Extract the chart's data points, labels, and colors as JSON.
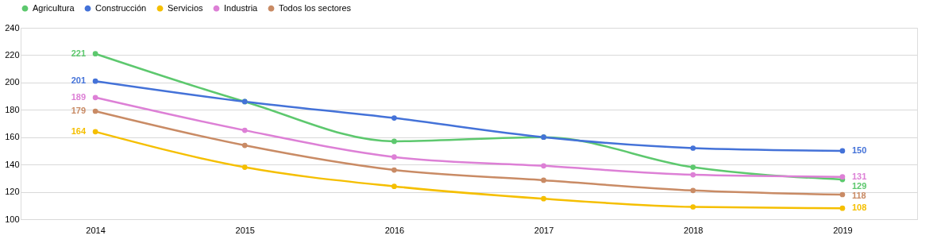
{
  "chart_data": {
    "type": "line",
    "categories": [
      "2014",
      "2015",
      "2016",
      "2017",
      "2018",
      "2019"
    ],
    "series": [
      {
        "name": "Agricultura",
        "color": "#5dc86e",
        "values": [
          221,
          186,
          157,
          160,
          138,
          129
        ],
        "value_labels": [
          "221",
          null,
          null,
          null,
          null,
          "129"
        ]
      },
      {
        "name": "Construcción",
        "color": "#4472d8",
        "values": [
          201,
          186,
          174,
          160,
          152,
          150
        ],
        "value_labels": [
          "201",
          null,
          null,
          null,
          null,
          "150"
        ]
      },
      {
        "name": "Servicios",
        "color": "#f5bf00",
        "values": [
          164,
          138,
          124,
          115,
          109,
          108
        ],
        "value_labels": [
          "164",
          null,
          null,
          null,
          null,
          "108"
        ]
      },
      {
        "name": "Industria",
        "color": "#dd80d6",
        "values": [
          189,
          165,
          145.5,
          139,
          132.5,
          131
        ],
        "value_labels": [
          "189",
          null,
          null,
          null,
          null,
          "131"
        ]
      },
      {
        "name": "Todos los sectores",
        "color": "#c98b65",
        "values": [
          179,
          154,
          136,
          128.5,
          121,
          118
        ],
        "value_labels": [
          "179",
          null,
          null,
          null,
          null,
          "118"
        ]
      }
    ],
    "ylim": [
      100,
      240
    ],
    "yticks": [
      100,
      120,
      140,
      160,
      180,
      200,
      220,
      240
    ],
    "grid": "y",
    "legend": "top",
    "marker": "circle",
    "line_style": "solid"
  }
}
